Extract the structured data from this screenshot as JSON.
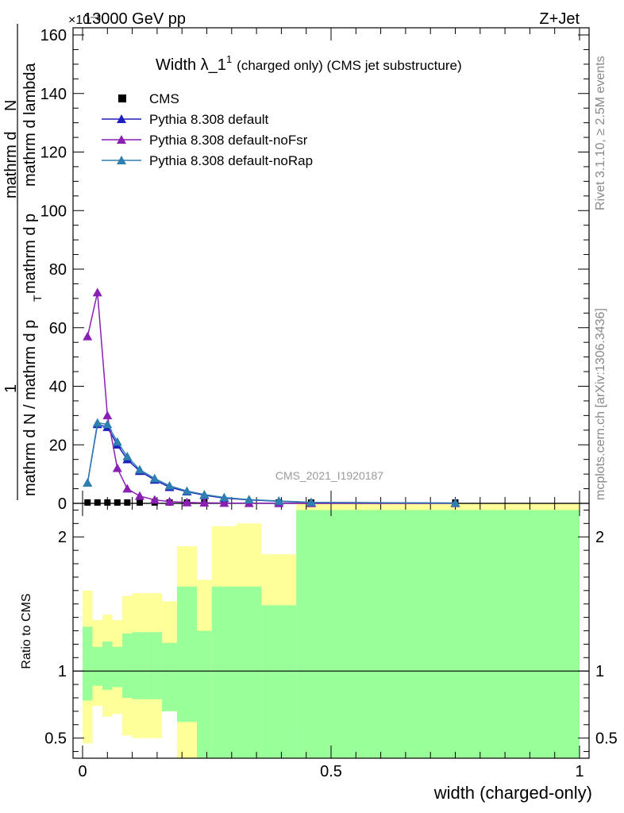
{
  "header": {
    "left": "13000 GeV pp",
    "right": "Z+Jet",
    "exponent": "×10⁻³"
  },
  "plot_title": {
    "main": "Width λ_1",
    "sup": "1",
    "suffix": "(charged only) (CMS jet substructure)"
  },
  "side_text": {
    "rivet": "Rivet 3.1.10, ≥ 2.5M events",
    "mcplots": "mcplots.cern.ch [arXiv:1306.3436]"
  },
  "watermark": "CMS_2021_I1920187",
  "upper_ylabel": {
    "numerator": "1",
    "denominator": "mathrm d N / mathrm d p",
    "sub_t": "T",
    "right_part_a": "mathrm d",
    "right_part_b": "N",
    "right_part_c": "mathrm d p",
    "right_part_d": "mathrm d lambda",
    "full": "mathrm dN / mathrm d p_T mathrm d lambda"
  },
  "colors": {
    "cms": "#000000",
    "default": "#1f1fbf",
    "noFsr": "#8a1fb4",
    "noRap": "#2f7fb0",
    "band_yellow": "#ffff99",
    "band_green": "#99ff99"
  },
  "chart_data": [
    {
      "type": "line",
      "title": "Width λ_1^1 (charged only) (CMS jet substructure)",
      "ylabel": "1/(mathrm d N / mathrm d p_T) mathrm d^2N / mathrm d p_T mathrm d lambda",
      "xlabel": "",
      "y_multiplier": "×10^-3",
      "xlim": [
        0,
        1
      ],
      "ylim": [
        0,
        165
      ],
      "yticks": [
        0,
        20,
        40,
        60,
        80,
        100,
        120,
        140,
        160
      ],
      "legend_position": "top-left",
      "series": [
        {
          "name": "CMS",
          "marker": "square",
          "x": [
            0.01,
            0.03,
            0.05,
            0.07,
            0.09,
            0.115,
            0.145,
            0.175,
            0.21,
            0.245,
            0.285,
            0.335,
            0.395,
            0.46,
            0.75
          ],
          "values": [
            0.3,
            0.3,
            0.3,
            0.3,
            0.3,
            0.3,
            0.3,
            0.3,
            0.3,
            0.3,
            0.3,
            0.3,
            0.3,
            0.3,
            0.3
          ]
        },
        {
          "name": "Pythia 8.308 default",
          "marker": "triangle",
          "x": [
            0.01,
            0.03,
            0.05,
            0.07,
            0.09,
            0.115,
            0.145,
            0.175,
            0.21,
            0.245,
            0.285,
            0.335,
            0.395,
            0.46,
            0.75
          ],
          "values": [
            7,
            27,
            26,
            20,
            15,
            11,
            8,
            5.5,
            4,
            2.8,
            1.8,
            1.2,
            0.7,
            0.3,
            0.1
          ]
        },
        {
          "name": "Pythia 8.308 default-noFsr",
          "marker": "triangle",
          "x": [
            0.01,
            0.03,
            0.05,
            0.07,
            0.09,
            0.115,
            0.145,
            0.175,
            0.21,
            0.245,
            0.285,
            0.335,
            0.395,
            0.46,
            0.75
          ],
          "values": [
            57,
            72,
            30,
            12,
            5,
            2.5,
            1.2,
            0.6,
            0.3,
            0.2,
            0.1,
            0.05,
            0.02,
            0.01,
            0.0
          ]
        },
        {
          "name": "Pythia 8.308 default-noRap",
          "marker": "triangle",
          "x": [
            0.01,
            0.03,
            0.05,
            0.07,
            0.09,
            0.115,
            0.145,
            0.175,
            0.21,
            0.245,
            0.285,
            0.335,
            0.395,
            0.46,
            0.75
          ],
          "values": [
            7,
            27.5,
            27,
            21,
            16,
            11.5,
            8.5,
            6,
            4.2,
            3,
            2,
            1.3,
            0.8,
            0.35,
            0.1
          ]
        }
      ]
    },
    {
      "type": "area",
      "title": "",
      "ylabel": "Ratio to CMS",
      "xlabel": "width (charged-only)",
      "xlim": [
        0,
        1
      ],
      "ylim": [
        0.35,
        2.25
      ],
      "yticks": [
        0.5,
        1,
        2
      ],
      "xticks": [
        0,
        0.5,
        1
      ],
      "reference_line": 1,
      "bands": {
        "edges": [
          0,
          0.02,
          0.04,
          0.06,
          0.08,
          0.1,
          0.13,
          0.16,
          0.19,
          0.23,
          0.26,
          0.31,
          0.36,
          0.43,
          0.5,
          1.0
        ],
        "yellow_low": [
          0.46,
          0.74,
          0.66,
          0.68,
          0.52,
          0.5,
          0.5,
          0.7,
          0.3,
          0.3,
          0.4,
          0.39,
          0.62,
          0.35,
          0.35
        ],
        "yellow_high": [
          1.6,
          1.38,
          1.42,
          1.38,
          1.56,
          1.58,
          1.58,
          1.52,
          1.93,
          1.68,
          2.08,
          2.1,
          1.87,
          2.25,
          2.25
        ],
        "green_low": [
          0.78,
          0.89,
          0.86,
          0.88,
          0.8,
          0.79,
          0.79,
          0.7,
          0.62,
          0.35,
          0.35,
          0.35,
          0.35,
          0.35,
          0.35
        ],
        "green_high": [
          1.33,
          1.18,
          1.22,
          1.18,
          1.28,
          1.29,
          1.29,
          1.21,
          1.63,
          1.3,
          1.63,
          1.63,
          1.49,
          2.2,
          2.2
        ]
      }
    }
  ]
}
